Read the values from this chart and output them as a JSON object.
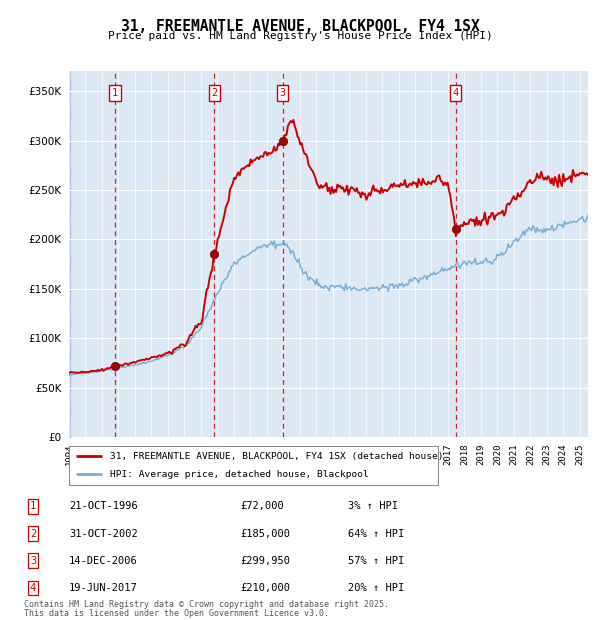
{
  "title": "31, FREEMANTLE AVENUE, BLACKPOOL, FY4 1SX",
  "subtitle": "Price paid vs. HM Land Registry's House Price Index (HPI)",
  "legend_line1": "31, FREEMANTLE AVENUE, BLACKPOOL, FY4 1SX (detached house)",
  "legend_line2": "HPI: Average price, detached house, Blackpool",
  "footer1": "Contains HM Land Registry data © Crown copyright and database right 2025.",
  "footer2": "This data is licensed under the Open Government Licence v3.0.",
  "transactions": [
    {
      "num": 1,
      "date": "21-OCT-1996",
      "price": 72000,
      "pct": "3%",
      "year_x": 1996.8
    },
    {
      "num": 2,
      "date": "31-OCT-2002",
      "price": 185000,
      "pct": "64%",
      "year_x": 2002.83
    },
    {
      "num": 3,
      "date": "14-DEC-2006",
      "price": 299950,
      "pct": "57%",
      "year_x": 2006.96
    },
    {
      "num": 4,
      "date": "19-JUN-2017",
      "price": 210000,
      "pct": "20%",
      "year_x": 2017.47
    }
  ],
  "hpi_color": "#7bafd4",
  "price_color": "#cc0000",
  "marker_color": "#aa0000",
  "vline_color": "#cc0000",
  "background_color": "#dce9f5",
  "grid_color": "#ffffff",
  "xlim": [
    1994.0,
    2025.5
  ],
  "ylim": [
    0,
    370000
  ],
  "yticks": [
    0,
    50000,
    100000,
    150000,
    200000,
    250000,
    300000,
    350000
  ]
}
